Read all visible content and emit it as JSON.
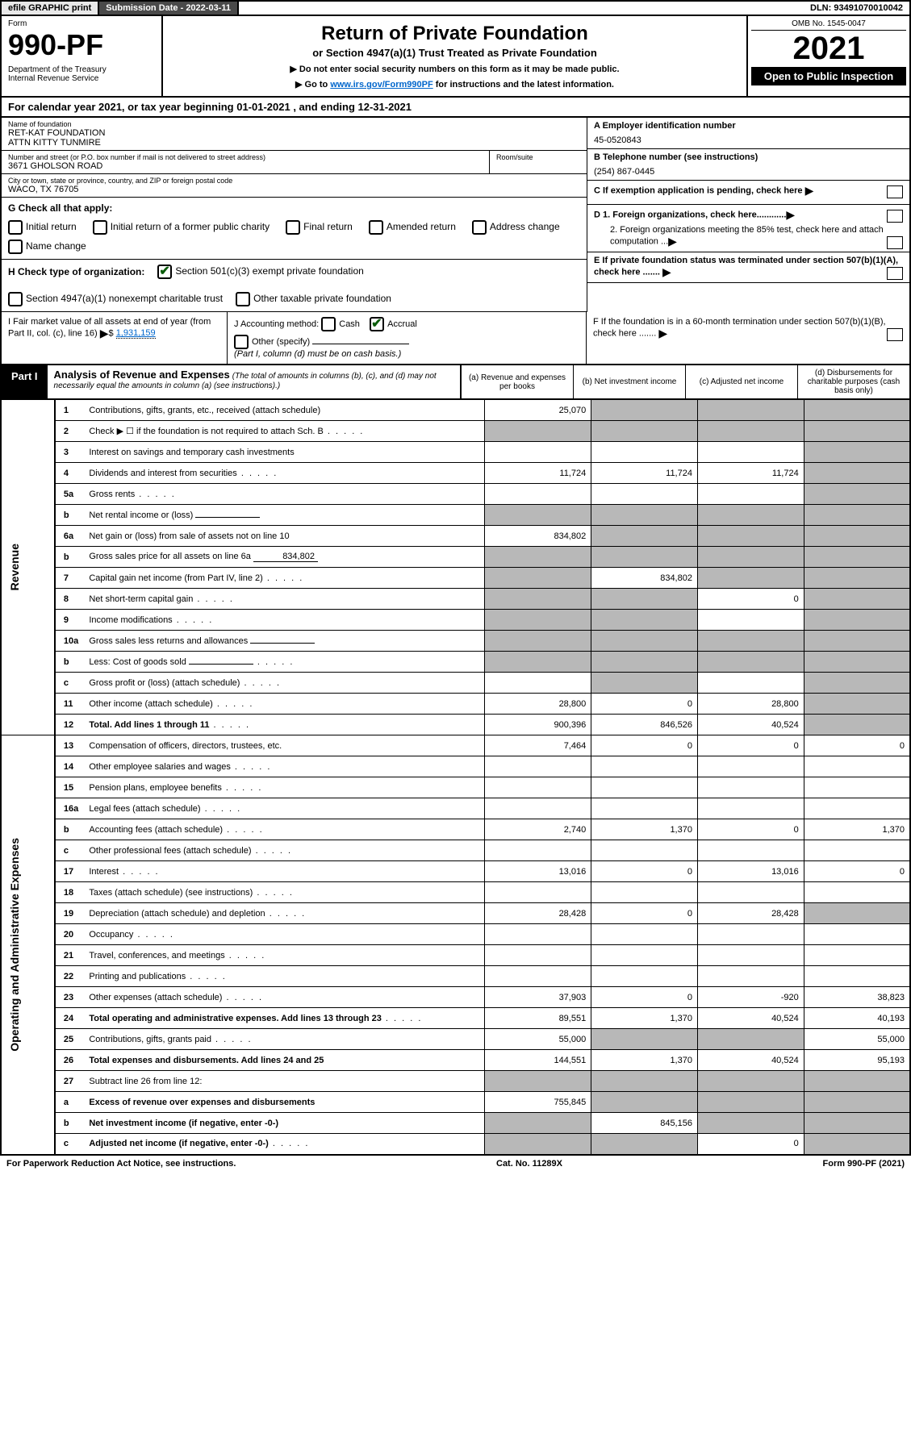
{
  "topbar": {
    "efile": "efile GRAPHIC print",
    "submission": "Submission Date - 2022-03-11",
    "dln": "DLN: 93491070010042"
  },
  "header": {
    "form_label": "Form",
    "form_number": "990-PF",
    "dept": "Department of the Treasury\nInternal Revenue Service",
    "title": "Return of Private Foundation",
    "subtitle": "or Section 4947(a)(1) Trust Treated as Private Foundation",
    "note1": "▶ Do not enter social security numbers on this form as it may be made public.",
    "note2_pre": "▶ Go to ",
    "note2_link": "www.irs.gov/Form990PF",
    "note2_post": " for instructions and the latest information.",
    "omb": "OMB No. 1545-0047",
    "year": "2021",
    "open_pub": "Open to Public Inspection"
  },
  "calendar": "For calendar year 2021, or tax year beginning 01-01-2021            , and ending 12-31-2021",
  "entity": {
    "name_label": "Name of foundation",
    "name": "RET-KAT FOUNDATION\nATTN KITTY TUNMIRE",
    "addr_label": "Number and street (or P.O. box number if mail is not delivered to street address)",
    "addr": "3671 GHOLSON ROAD",
    "room_label": "Room/suite",
    "city_label": "City or town, state or province, country, and ZIP or foreign postal code",
    "city": "WACO, TX  76705",
    "ein_label": "A Employer identification number",
    "ein": "45-0520843",
    "phone_label": "B Telephone number (see instructions)",
    "phone": "(254) 867-0445",
    "c_label": "C If exemption application is pending, check here",
    "d1_label": "D 1. Foreign organizations, check here............",
    "d2_label": "2. Foreign organizations meeting the 85% test, check here and attach computation ...",
    "e_label": "E  If private foundation status was terminated under section 507(b)(1)(A), check here .......",
    "f_label": "F  If the foundation is in a 60-month termination under section 507(b)(1)(B), check here .......",
    "g_label": "G Check all that apply:",
    "g_opts": [
      "Initial return",
      "Initial return of a former public charity",
      "Final return",
      "Amended return",
      "Address change",
      "Name change"
    ],
    "h_label": "H Check type of organization:",
    "h_opt1": "Section 501(c)(3) exempt private foundation",
    "h_opt2": "Section 4947(a)(1) nonexempt charitable trust",
    "h_opt3": "Other taxable private foundation",
    "i_label": "I Fair market value of all assets at end of year (from Part II, col. (c), line 16)",
    "i_value": "1,931,159",
    "j_label": "J Accounting method:",
    "j_opts": [
      "Cash",
      "Accrual"
    ],
    "j_other": "Other (specify)",
    "j_note": "(Part I, column (d) must be on cash basis.)"
  },
  "part1": {
    "label": "Part I",
    "title": "Analysis of Revenue and Expenses",
    "subtitle": "(The total of amounts in columns (b), (c), and (d) may not necessarily equal the amounts in column (a) (see instructions).)",
    "col_a": "(a)   Revenue and expenses per books",
    "col_b": "(b)   Net investment income",
    "col_c": "(c)   Adjusted net income",
    "col_d": "(d)  Disbursements for charitable purposes (cash basis only)"
  },
  "side": {
    "revenue": "Revenue",
    "expenses": "Operating and Administrative Expenses"
  },
  "rows": [
    {
      "n": "1",
      "desc": "Contributions, gifts, grants, etc., received (attach schedule)",
      "a": "25,070",
      "b": "",
      "c": "",
      "d": "",
      "b_shaded": true,
      "c_shaded": true,
      "d_shaded": true
    },
    {
      "n": "2",
      "desc": "Check ▶ ☐ if the foundation is not required to attach Sch. B",
      "dots": true,
      "a": "",
      "b": "",
      "c": "",
      "d": "",
      "a_shaded": true,
      "b_shaded": true,
      "c_shaded": true,
      "d_shaded": true
    },
    {
      "n": "3",
      "desc": "Interest on savings and temporary cash investments",
      "a": "",
      "b": "",
      "c": "",
      "d": "",
      "d_shaded": true
    },
    {
      "n": "4",
      "desc": "Dividends and interest from securities",
      "dots": true,
      "a": "11,724",
      "b": "11,724",
      "c": "11,724",
      "d": "",
      "d_shaded": true
    },
    {
      "n": "5a",
      "desc": "Gross rents",
      "dots": true,
      "a": "",
      "b": "",
      "c": "",
      "d": "",
      "d_shaded": true
    },
    {
      "n": "b",
      "desc": "Net rental income or (loss)",
      "inline": "",
      "a": "",
      "b": "",
      "c": "",
      "d": "",
      "a_shaded": true,
      "b_shaded": true,
      "c_shaded": true,
      "d_shaded": true
    },
    {
      "n": "6a",
      "desc": "Net gain or (loss) from sale of assets not on line 10",
      "a": "834,802",
      "b": "",
      "c": "",
      "d": "",
      "b_shaded": true,
      "c_shaded": true,
      "d_shaded": true
    },
    {
      "n": "b",
      "desc": "Gross sales price for all assets on line 6a",
      "inline": "834,802",
      "a": "",
      "b": "",
      "c": "",
      "d": "",
      "a_shaded": true,
      "b_shaded": true,
      "c_shaded": true,
      "d_shaded": true
    },
    {
      "n": "7",
      "desc": "Capital gain net income (from Part IV, line 2)",
      "dots": true,
      "a": "",
      "b": "834,802",
      "c": "",
      "d": "",
      "a_shaded": true,
      "c_shaded": true,
      "d_shaded": true
    },
    {
      "n": "8",
      "desc": "Net short-term capital gain",
      "dots": true,
      "a": "",
      "b": "",
      "c": "0",
      "d": "",
      "a_shaded": true,
      "b_shaded": true,
      "d_shaded": true
    },
    {
      "n": "9",
      "desc": "Income modifications",
      "dots": true,
      "a": "",
      "b": "",
      "c": "",
      "d": "",
      "a_shaded": true,
      "b_shaded": true,
      "d_shaded": true
    },
    {
      "n": "10a",
      "desc": "Gross sales less returns and allowances",
      "inline": "",
      "a": "",
      "b": "",
      "c": "",
      "d": "",
      "a_shaded": true,
      "b_shaded": true,
      "c_shaded": true,
      "d_shaded": true
    },
    {
      "n": "b",
      "desc": "Less: Cost of goods sold",
      "dots": true,
      "inline": "",
      "a": "",
      "b": "",
      "c": "",
      "d": "",
      "a_shaded": true,
      "b_shaded": true,
      "c_shaded": true,
      "d_shaded": true
    },
    {
      "n": "c",
      "desc": "Gross profit or (loss) (attach schedule)",
      "dots": true,
      "a": "",
      "b": "",
      "c": "",
      "d": "",
      "b_shaded": true,
      "d_shaded": true
    },
    {
      "n": "11",
      "desc": "Other income (attach schedule)",
      "dots": true,
      "a": "28,800",
      "b": "0",
      "c": "28,800",
      "d": "",
      "d_shaded": true
    },
    {
      "n": "12",
      "desc": "Total. Add lines 1 through 11",
      "dots": true,
      "bold": true,
      "a": "900,396",
      "b": "846,526",
      "c": "40,524",
      "d": "",
      "d_shaded": true
    },
    {
      "n": "13",
      "desc": "Compensation of officers, directors, trustees, etc.",
      "a": "7,464",
      "b": "0",
      "c": "0",
      "d": "0"
    },
    {
      "n": "14",
      "desc": "Other employee salaries and wages",
      "dots": true,
      "a": "",
      "b": "",
      "c": "",
      "d": ""
    },
    {
      "n": "15",
      "desc": "Pension plans, employee benefits",
      "dots": true,
      "a": "",
      "b": "",
      "c": "",
      "d": ""
    },
    {
      "n": "16a",
      "desc": "Legal fees (attach schedule)",
      "dots": true,
      "a": "",
      "b": "",
      "c": "",
      "d": ""
    },
    {
      "n": "b",
      "desc": "Accounting fees (attach schedule)",
      "dots": true,
      "a": "2,740",
      "b": "1,370",
      "c": "0",
      "d": "1,370"
    },
    {
      "n": "c",
      "desc": "Other professional fees (attach schedule)",
      "dots": true,
      "a": "",
      "b": "",
      "c": "",
      "d": ""
    },
    {
      "n": "17",
      "desc": "Interest",
      "dots": true,
      "a": "13,016",
      "b": "0",
      "c": "13,016",
      "d": "0"
    },
    {
      "n": "18",
      "desc": "Taxes (attach schedule) (see instructions)",
      "dots": true,
      "a": "",
      "b": "",
      "c": "",
      "d": ""
    },
    {
      "n": "19",
      "desc": "Depreciation (attach schedule) and depletion",
      "dots": true,
      "a": "28,428",
      "b": "0",
      "c": "28,428",
      "d": "",
      "d_shaded": true
    },
    {
      "n": "20",
      "desc": "Occupancy",
      "dots": true,
      "a": "",
      "b": "",
      "c": "",
      "d": ""
    },
    {
      "n": "21",
      "desc": "Travel, conferences, and meetings",
      "dots": true,
      "a": "",
      "b": "",
      "c": "",
      "d": ""
    },
    {
      "n": "22",
      "desc": "Printing and publications",
      "dots": true,
      "a": "",
      "b": "",
      "c": "",
      "d": ""
    },
    {
      "n": "23",
      "desc": "Other expenses (attach schedule)",
      "dots": true,
      "a": "37,903",
      "b": "0",
      "c": "-920",
      "d": "38,823"
    },
    {
      "n": "24",
      "desc": "Total operating and administrative expenses. Add lines 13 through 23",
      "dots": true,
      "bold": true,
      "a": "89,551",
      "b": "1,370",
      "c": "40,524",
      "d": "40,193"
    },
    {
      "n": "25",
      "desc": "Contributions, gifts, grants paid",
      "dots": true,
      "a": "55,000",
      "b": "",
      "c": "",
      "d": "55,000",
      "b_shaded": true,
      "c_shaded": true
    },
    {
      "n": "26",
      "desc": "Total expenses and disbursements. Add lines 24 and 25",
      "bold": true,
      "a": "144,551",
      "b": "1,370",
      "c": "40,524",
      "d": "95,193"
    },
    {
      "n": "27",
      "desc": "Subtract line 26 from line 12:",
      "a": "",
      "b": "",
      "c": "",
      "d": "",
      "a_shaded": true,
      "b_shaded": true,
      "c_shaded": true,
      "d_shaded": true
    },
    {
      "n": "a",
      "desc": "Excess of revenue over expenses and disbursements",
      "bold": true,
      "a": "755,845",
      "b": "",
      "c": "",
      "d": "",
      "b_shaded": true,
      "c_shaded": true,
      "d_shaded": true
    },
    {
      "n": "b",
      "desc": "Net investment income (if negative, enter -0-)",
      "bold": true,
      "a": "",
      "b": "845,156",
      "c": "",
      "d": "",
      "a_shaded": true,
      "c_shaded": true,
      "d_shaded": true
    },
    {
      "n": "c",
      "desc": "Adjusted net income (if negative, enter -0-)",
      "dots": true,
      "bold": true,
      "a": "",
      "b": "",
      "c": "0",
      "d": "",
      "a_shaded": true,
      "b_shaded": true,
      "d_shaded": true
    }
  ],
  "footer": {
    "left": "For Paperwork Reduction Act Notice, see instructions.",
    "center": "Cat. No. 11289X",
    "right": "Form 990-PF (2021)"
  },
  "colors": {
    "shaded": "#b8b8b8",
    "link": "#0066cc",
    "check": "#0a5c0a",
    "darkbar": "#4a4a4a"
  }
}
